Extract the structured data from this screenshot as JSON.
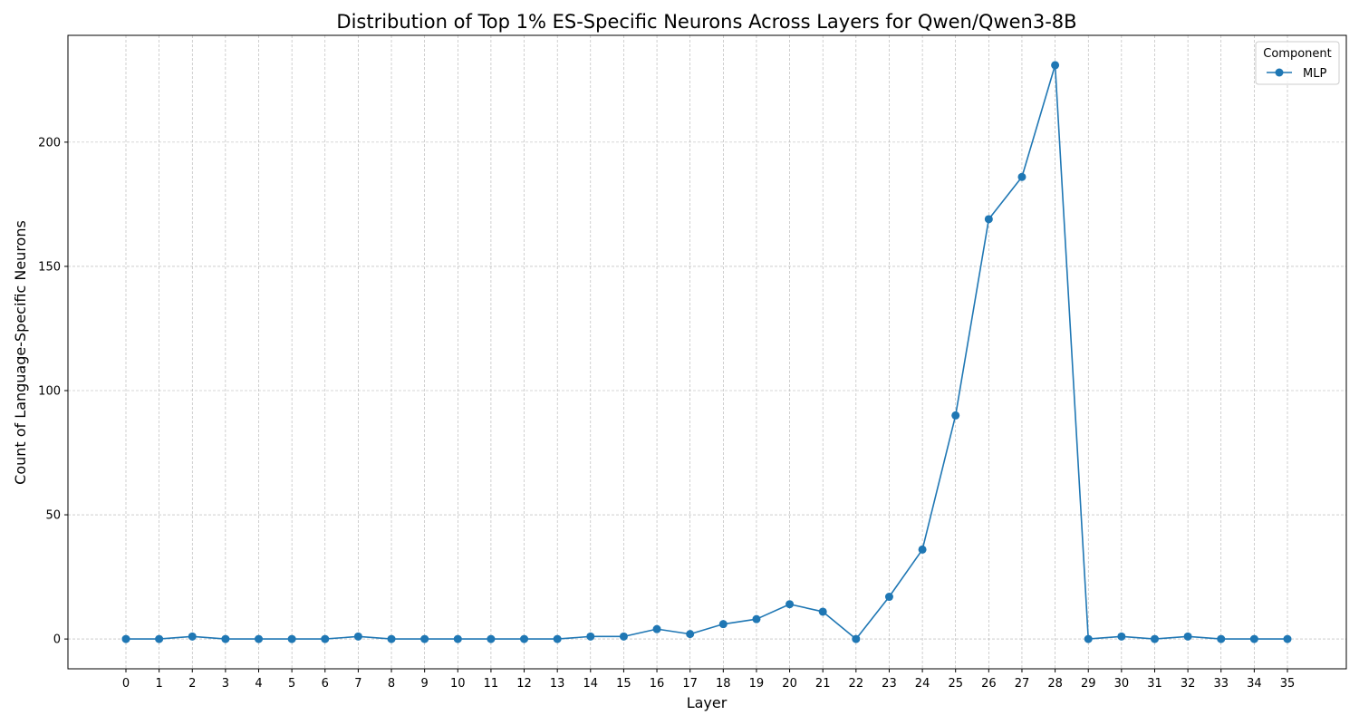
{
  "chart_data": {
    "type": "line",
    "title": "Distribution of Top 1% ES-Specific Neurons Across Layers for Qwen/Qwen3-8B",
    "xlabel": "Layer",
    "ylabel": "Count of Language-Specific Neurons",
    "categories": [
      "0",
      "1",
      "2",
      "3",
      "4",
      "5",
      "6",
      "7",
      "8",
      "9",
      "10",
      "11",
      "12",
      "13",
      "14",
      "15",
      "16",
      "17",
      "18",
      "19",
      "20",
      "21",
      "22",
      "23",
      "24",
      "25",
      "26",
      "27",
      "28",
      "29",
      "30",
      "31",
      "32",
      "33",
      "34",
      "35"
    ],
    "series": [
      {
        "name": "MLP",
        "color": "#1f77b4",
        "marker": "circle",
        "values": [
          0,
          0,
          1,
          0,
          0,
          0,
          0,
          1,
          0,
          0,
          0,
          0,
          0,
          0,
          1,
          1,
          4,
          2,
          6,
          8,
          14,
          11,
          0,
          17,
          36,
          90,
          169,
          186,
          231,
          0,
          1,
          0,
          1,
          0,
          0,
          0
        ]
      }
    ],
    "ylim": [
      -12,
      243
    ],
    "yticks": [
      0,
      50,
      100,
      150,
      200
    ],
    "grid": true,
    "legend": {
      "title": "Component",
      "placement": "top-right"
    }
  }
}
